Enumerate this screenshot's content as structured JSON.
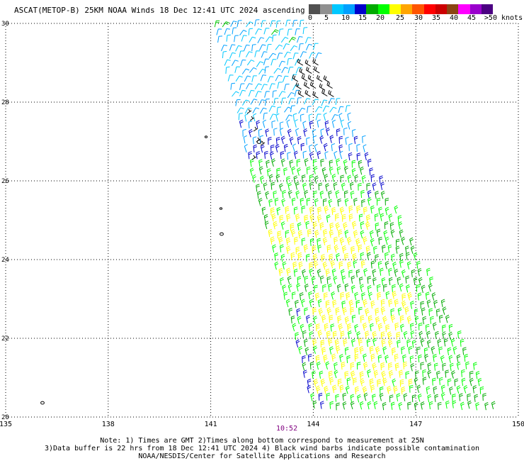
{
  "title": "ASCAT(METOP-B) 25KM NOAA Winds 18 Dec 12:41 UTC 2024 ascending",
  "colorbar": {
    "labels": [
      "0",
      "5",
      "10",
      "15",
      "20",
      "25",
      "30",
      "35",
      "40",
      "45",
      ">50 knots"
    ],
    "colors": [
      "#505050",
      "#909090",
      "#00c8ff",
      "#00a0ff",
      "#0000cc",
      "#00aa00",
      "#00ff00",
      "#ffff00",
      "#ffa500",
      "#ff5500",
      "#ff0000",
      "#cc0000",
      "#8b4513",
      "#ff00ff",
      "#9900cc",
      "#4b0082"
    ]
  },
  "axes": {
    "lon_min": 135,
    "lon_max": 150,
    "lat_min": 20,
    "lat_max": 30,
    "lon_ticks": [
      "135",
      "138",
      "141",
      "144",
      "147",
      "150"
    ],
    "lat_ticks": [
      "30",
      "28",
      "26",
      "24",
      "22",
      "20"
    ]
  },
  "swath_time": "10:52",
  "footer": {
    "line1": "Note: 1) Times are GMT 2)Times along bottom correspond to measurement at 25N",
    "line2": "3)Data buffer is 22 hrs from 18 Dec 12:41 UTC 2024 4) Black wind barbs indicate possible contamination",
    "line3": "NOAA/NESDIS/Center for Satellite Applications and Research"
  }
}
